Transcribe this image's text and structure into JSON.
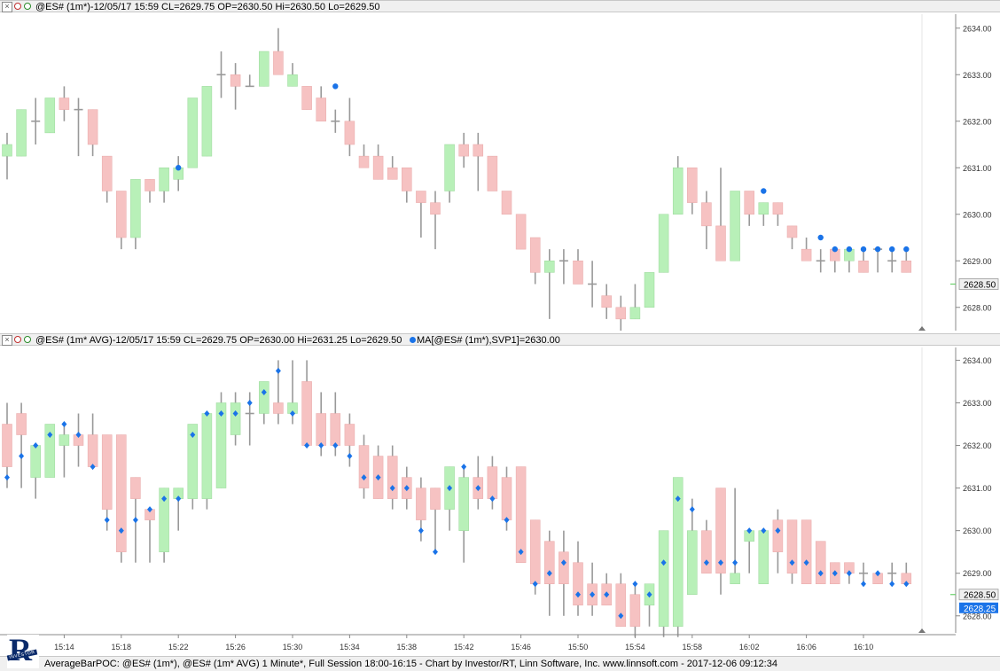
{
  "pane1": {
    "title": "@ES# (1m*)-12/05/17 15:59 CL=2629.75 OP=2630.50 Hi=2630.50 Lo=2629.50",
    "last_price": "2628.50",
    "colors": {
      "up": "#b8f0b8",
      "down": "#f6c2c2",
      "poc": "#1a73e8",
      "wick": "#999999"
    }
  },
  "pane2": {
    "title": "@ES# (1m* AVG)-12/05/17 15:59 CL=2629.75 OP=2630.00 Hi=2631.25 Lo=2629.50",
    "ma_label": "MA[@ES# (1m*),SVP1]=2630.00",
    "last_price": "2628.50",
    "ma_price": "2628.25"
  },
  "footer": {
    "text": "AverageBarPOC: @ES# (1m*), @ES# (1m* AVG) 1 Minute*, Full Session 18:00-16:15 - Chart by Investor/RT, Linn Software, Inc. www.linnsoft.com - 2017-12-06 09:12:34",
    "logo_letter": "R",
    "logo_band": "INVESTOR"
  },
  "chart_data": [
    {
      "type": "candlestick",
      "title": "@ES# (1m*)",
      "y_ticks": [
        "2628.00",
        "2629.00",
        "2630.00",
        "2631.00",
        "2632.00",
        "2633.00",
        "2634.00"
      ],
      "y_values": [
        2628,
        2629,
        2630,
        2631,
        2632,
        2633,
        2634
      ],
      "ylim": [
        2627.5,
        2634.3
      ],
      "x_ticks": [
        "15:14",
        "15:18",
        "15:22",
        "15:26",
        "15:30",
        "15:34",
        "15:38",
        "15:42",
        "15:46",
        "15:50",
        "15:54",
        "15:58",
        "16:02",
        "16:06",
        "16:10"
      ],
      "bars": [
        {
          "o": 2631.25,
          "h": 2631.75,
          "l": 2630.75,
          "c": 2631.5
        },
        {
          "o": 2631.25,
          "h": 2632.25,
          "l": 2631.25,
          "c": 2632.25
        },
        {
          "o": 2632.0,
          "h": 2632.5,
          "l": 2631.5,
          "c": 2632.0
        },
        {
          "o": 2631.75,
          "h": 2632.5,
          "l": 2631.75,
          "c": 2632.5
        },
        {
          "o": 2632.5,
          "h": 2632.75,
          "l": 2632.0,
          "c": 2632.25
        },
        {
          "o": 2632.25,
          "h": 2632.5,
          "l": 2631.25,
          "c": 2632.25
        },
        {
          "o": 2632.25,
          "h": 2632.25,
          "l": 2631.25,
          "c": 2631.5
        },
        {
          "o": 2631.25,
          "h": 2631.25,
          "l": 2630.25,
          "c": 2630.5
        },
        {
          "o": 2630.5,
          "h": 2630.5,
          "l": 2629.25,
          "c": 2629.5
        },
        {
          "o": 2629.5,
          "h": 2630.75,
          "l": 2629.25,
          "c": 2630.75
        },
        {
          "o": 2630.75,
          "h": 2630.75,
          "l": 2630.25,
          "c": 2630.5
        },
        {
          "o": 2630.5,
          "h": 2631.0,
          "l": 2630.25,
          "c": 2631.0
        },
        {
          "o": 2630.75,
          "h": 2631.25,
          "l": 2630.5,
          "c": 2631.0
        },
        {
          "o": 2631.0,
          "h": 2632.5,
          "l": 2631.0,
          "c": 2632.5
        },
        {
          "o": 2631.25,
          "h": 2632.75,
          "l": 2631.25,
          "c": 2632.75
        },
        {
          "o": 2633.0,
          "h": 2633.5,
          "l": 2632.5,
          "c": 2633.0
        },
        {
          "o": 2633.0,
          "h": 2633.25,
          "l": 2632.25,
          "c": 2632.75
        },
        {
          "o": 2632.75,
          "h": 2633.0,
          "l": 2632.75,
          "c": 2632.75
        },
        {
          "o": 2632.75,
          "h": 2633.5,
          "l": 2632.75,
          "c": 2633.5
        },
        {
          "o": 2633.5,
          "h": 2634.0,
          "l": 2633.0,
          "c": 2633.0
        },
        {
          "o": 2632.75,
          "h": 2633.25,
          "l": 2632.75,
          "c": 2633.0
        },
        {
          "o": 2632.75,
          "h": 2632.75,
          "l": 2632.25,
          "c": 2632.25
        },
        {
          "o": 2632.5,
          "h": 2632.75,
          "l": 2632.0,
          "c": 2632.0
        },
        {
          "o": 2632.0,
          "h": 2632.25,
          "l": 2631.75,
          "c": 2632.0
        },
        {
          "o": 2632.0,
          "h": 2632.5,
          "l": 2631.25,
          "c": 2631.5
        },
        {
          "o": 2631.25,
          "h": 2631.5,
          "l": 2631.0,
          "c": 2631.0
        },
        {
          "o": 2631.25,
          "h": 2631.5,
          "l": 2630.75,
          "c": 2630.75
        },
        {
          "o": 2631.0,
          "h": 2631.25,
          "l": 2630.75,
          "c": 2630.75
        },
        {
          "o": 2631.0,
          "h": 2631.0,
          "l": 2630.25,
          "c": 2630.5
        },
        {
          "o": 2630.5,
          "h": 2630.5,
          "l": 2629.5,
          "c": 2630.25
        },
        {
          "o": 2630.25,
          "h": 2630.5,
          "l": 2629.25,
          "c": 2630.0
        },
        {
          "o": 2630.5,
          "h": 2631.5,
          "l": 2630.25,
          "c": 2631.5
        },
        {
          "o": 2631.5,
          "h": 2631.75,
          "l": 2631.0,
          "c": 2631.25
        },
        {
          "o": 2631.5,
          "h": 2631.75,
          "l": 2630.5,
          "c": 2631.25
        },
        {
          "o": 2631.25,
          "h": 2631.25,
          "l": 2630.5,
          "c": 2630.5
        },
        {
          "o": 2630.5,
          "h": 2630.5,
          "l": 2630.0,
          "c": 2630.0
        },
        {
          "o": 2630.0,
          "h": 2630.0,
          "l": 2629.25,
          "c": 2629.25
        },
        {
          "o": 2629.5,
          "h": 2629.5,
          "l": 2628.5,
          "c": 2628.75
        },
        {
          "o": 2628.75,
          "h": 2629.25,
          "l": 2627.75,
          "c": 2629.0
        },
        {
          "o": 2629.0,
          "h": 2629.25,
          "l": 2628.5,
          "c": 2629.0
        },
        {
          "o": 2629.0,
          "h": 2629.25,
          "l": 2628.5,
          "c": 2628.5
        },
        {
          "o": 2628.5,
          "h": 2629.0,
          "l": 2628.0,
          "c": 2628.5
        },
        {
          "o": 2628.25,
          "h": 2628.5,
          "l": 2627.75,
          "c": 2628.0
        },
        {
          "o": 2628.0,
          "h": 2628.25,
          "l": 2627.5,
          "c": 2627.75
        },
        {
          "o": 2627.75,
          "h": 2628.5,
          "l": 2627.75,
          "c": 2628.0
        },
        {
          "o": 2628.0,
          "h": 2628.75,
          "l": 2628.0,
          "c": 2628.75
        },
        {
          "o": 2628.75,
          "h": 2630.0,
          "l": 2628.75,
          "c": 2630.0
        },
        {
          "o": 2630.0,
          "h": 2631.25,
          "l": 2630.0,
          "c": 2631.0
        },
        {
          "o": 2631.0,
          "h": 2631.0,
          "l": 2630.0,
          "c": 2630.25
        },
        {
          "o": 2630.25,
          "h": 2630.5,
          "l": 2629.25,
          "c": 2629.75
        },
        {
          "o": 2629.75,
          "h": 2631.0,
          "l": 2629.0,
          "c": 2629.0
        },
        {
          "o": 2629.0,
          "h": 2630.5,
          "l": 2629.0,
          "c": 2630.5
        },
        {
          "o": 2630.5,
          "h": 2630.5,
          "l": 2629.75,
          "c": 2630.0
        },
        {
          "o": 2630.0,
          "h": 2630.25,
          "l": 2629.75,
          "c": 2630.25
        },
        {
          "o": 2630.25,
          "h": 2630.25,
          "l": 2629.75,
          "c": 2630.0
        },
        {
          "o": 2629.75,
          "h": 2629.75,
          "l": 2629.25,
          "c": 2629.5
        },
        {
          "o": 2629.25,
          "h": 2629.5,
          "l": 2629.0,
          "c": 2629.0
        },
        {
          "o": 2629.0,
          "h": 2629.25,
          "l": 2628.75,
          "c": 2629.0
        },
        {
          "o": 2629.25,
          "h": 2629.25,
          "l": 2628.75,
          "c": 2629.0
        },
        {
          "o": 2629.0,
          "h": 2629.25,
          "l": 2628.75,
          "c": 2629.25
        },
        {
          "o": 2629.0,
          "h": 2629.25,
          "l": 2628.75,
          "c": 2628.75
        },
        {
          "o": 2629.25,
          "h": 2629.25,
          "l": 2628.75,
          "c": 2629.25
        },
        {
          "o": 2629.0,
          "h": 2629.25,
          "l": 2628.75,
          "c": 2629.0
        },
        {
          "o": 2629.0,
          "h": 2629.25,
          "l": 2628.75,
          "c": 2628.75
        },
        {
          "o": 2629.0,
          "h": 2629.25,
          "l": 2628.75,
          "c": 2629.0
        },
        {
          "o": 2629.25,
          "h": 2629.25,
          "l": 2628.0,
          "c": 2628.5
        }
      ],
      "poc_points": [
        {
          "i": 12,
          "v": 2631.0
        },
        {
          "i": 23,
          "v": 2632.75
        },
        {
          "i": 53,
          "v": 2630.5
        },
        {
          "i": 57,
          "v": 2629.5
        },
        {
          "i": 58,
          "v": 2629.25
        },
        {
          "i": 59,
          "v": 2629.25
        },
        {
          "i": 60,
          "v": 2629.25
        },
        {
          "i": 61,
          "v": 2629.25
        },
        {
          "i": 62,
          "v": 2629.25
        },
        {
          "i": 63,
          "v": 2629.25
        }
      ]
    },
    {
      "type": "candlestick",
      "title": "@ES# (1m* AVG)",
      "series_name": "MA[@ES# (1m*),SVP1]",
      "y_ticks": [
        "2628.00",
        "2629.00",
        "2630.00",
        "2631.00",
        "2632.00",
        "2633.00",
        "2634.00"
      ],
      "y_values": [
        2628,
        2629,
        2630,
        2631,
        2632,
        2633,
        2634
      ],
      "ylim": [
        2627.6,
        2634.3
      ],
      "x_ticks": [
        "15:14",
        "15:18",
        "15:22",
        "15:26",
        "15:30",
        "15:34",
        "15:38",
        "15:42",
        "15:46",
        "15:50",
        "15:54",
        "15:58",
        "16:02",
        "16:06",
        "16:10"
      ],
      "bars": [
        {
          "o": 2632.5,
          "h": 2633.0,
          "l": 2631.0,
          "c": 2631.5
        },
        {
          "o": 2632.75,
          "h": 2633.0,
          "l": 2631.0,
          "c": 2632.25
        },
        {
          "o": 2631.25,
          "h": 2632.0,
          "l": 2630.75,
          "c": 2632.0
        },
        {
          "o": 2631.25,
          "h": 2632.5,
          "l": 2631.25,
          "c": 2632.5
        },
        {
          "o": 2632.0,
          "h": 2632.5,
          "l": 2631.25,
          "c": 2632.25
        },
        {
          "o": 2632.25,
          "h": 2632.75,
          "l": 2631.5,
          "c": 2632.0
        },
        {
          "o": 2632.25,
          "h": 2632.75,
          "l": 2631.5,
          "c": 2631.5
        },
        {
          "o": 2632.25,
          "h": 2632.25,
          "l": 2630.0,
          "c": 2630.5
        },
        {
          "o": 2632.25,
          "h": 2632.25,
          "l": 2629.25,
          "c": 2629.5
        },
        {
          "o": 2631.25,
          "h": 2631.25,
          "l": 2629.25,
          "c": 2630.75
        },
        {
          "o": 2630.5,
          "h": 2630.5,
          "l": 2629.25,
          "c": 2630.25
        },
        {
          "o": 2629.5,
          "h": 2631.0,
          "l": 2629.25,
          "c": 2631.0
        },
        {
          "o": 2630.75,
          "h": 2631.0,
          "l": 2630.0,
          "c": 2631.0
        },
        {
          "o": 2630.75,
          "h": 2632.5,
          "l": 2630.5,
          "c": 2632.5
        },
        {
          "o": 2630.75,
          "h": 2632.75,
          "l": 2630.5,
          "c": 2632.75
        },
        {
          "o": 2631.0,
          "h": 2633.25,
          "l": 2631.0,
          "c": 2633.0
        },
        {
          "o": 2632.25,
          "h": 2633.25,
          "l": 2632.0,
          "c": 2633.0
        },
        {
          "o": 2632.75,
          "h": 2633.25,
          "l": 2632.0,
          "c": 2632.75
        },
        {
          "o": 2632.75,
          "h": 2633.5,
          "l": 2632.5,
          "c": 2633.5
        },
        {
          "o": 2633.0,
          "h": 2634.0,
          "l": 2632.5,
          "c": 2632.75
        },
        {
          "o": 2632.75,
          "h": 2634.0,
          "l": 2632.5,
          "c": 2633.0
        },
        {
          "o": 2633.5,
          "h": 2634.0,
          "l": 2632.0,
          "c": 2632.0
        },
        {
          "o": 2632.75,
          "h": 2633.25,
          "l": 2631.75,
          "c": 2632.0
        },
        {
          "o": 2632.75,
          "h": 2633.25,
          "l": 2631.75,
          "c": 2632.0
        },
        {
          "o": 2632.5,
          "h": 2632.75,
          "l": 2631.5,
          "c": 2632.0
        },
        {
          "o": 2632.0,
          "h": 2632.25,
          "l": 2630.75,
          "c": 2631.0
        },
        {
          "o": 2631.75,
          "h": 2632.0,
          "l": 2630.75,
          "c": 2630.75
        },
        {
          "o": 2631.75,
          "h": 2632.0,
          "l": 2630.5,
          "c": 2630.75
        },
        {
          "o": 2631.25,
          "h": 2631.5,
          "l": 2630.5,
          "c": 2630.75
        },
        {
          "o": 2631.0,
          "h": 2631.25,
          "l": 2629.75,
          "c": 2630.25
        },
        {
          "o": 2631.0,
          "h": 2631.0,
          "l": 2629.5,
          "c": 2630.5
        },
        {
          "o": 2630.5,
          "h": 2631.5,
          "l": 2630.0,
          "c": 2631.5
        },
        {
          "o": 2630.0,
          "h": 2631.5,
          "l": 2629.25,
          "c": 2631.25
        },
        {
          "o": 2631.25,
          "h": 2631.75,
          "l": 2630.5,
          "c": 2630.75
        },
        {
          "o": 2631.5,
          "h": 2631.75,
          "l": 2630.5,
          "c": 2630.75
        },
        {
          "o": 2631.25,
          "h": 2631.5,
          "l": 2630.0,
          "c": 2630.25
        },
        {
          "o": 2631.5,
          "h": 2631.5,
          "l": 2629.25,
          "c": 2629.25
        },
        {
          "o": 2630.25,
          "h": 2630.25,
          "l": 2628.5,
          "c": 2628.75
        },
        {
          "o": 2629.75,
          "h": 2630.0,
          "l": 2628.0,
          "c": 2628.75
        },
        {
          "o": 2629.5,
          "h": 2630.0,
          "l": 2628.0,
          "c": 2628.75
        },
        {
          "o": 2629.25,
          "h": 2629.75,
          "l": 2628.0,
          "c": 2628.25
        },
        {
          "o": 2628.75,
          "h": 2629.25,
          "l": 2628.0,
          "c": 2628.25
        },
        {
          "o": 2628.75,
          "h": 2629.0,
          "l": 2628.25,
          "c": 2628.25
        },
        {
          "o": 2628.75,
          "h": 2629.0,
          "l": 2627.75,
          "c": 2627.75
        },
        {
          "o": 2628.5,
          "h": 2628.75,
          "l": 2627.5,
          "c": 2627.75
        },
        {
          "o": 2628.25,
          "h": 2628.75,
          "l": 2627.75,
          "c": 2628.75
        },
        {
          "o": 2627.75,
          "h": 2630.0,
          "l": 2627.5,
          "c": 2630.0
        },
        {
          "o": 2627.75,
          "h": 2631.25,
          "l": 2627.5,
          "c": 2631.25
        },
        {
          "o": 2628.5,
          "h": 2630.75,
          "l": 2628.5,
          "c": 2630.0
        },
        {
          "o": 2630.0,
          "h": 2630.25,
          "l": 2629.0,
          "c": 2629.0
        },
        {
          "o": 2631.0,
          "h": 2631.0,
          "l": 2628.5,
          "c": 2629.0
        },
        {
          "o": 2628.75,
          "h": 2631.0,
          "l": 2628.75,
          "c": 2629.0
        },
        {
          "o": 2629.75,
          "h": 2630.0,
          "l": 2629.0,
          "c": 2630.0
        },
        {
          "o": 2628.75,
          "h": 2630.0,
          "l": 2628.75,
          "c": 2630.0
        },
        {
          "o": 2630.25,
          "h": 2630.5,
          "l": 2629.0,
          "c": 2629.5
        },
        {
          "o": 2630.25,
          "h": 2630.25,
          "l": 2628.75,
          "c": 2629.0
        },
        {
          "o": 2630.25,
          "h": 2630.25,
          "l": 2628.75,
          "c": 2628.75
        },
        {
          "o": 2629.75,
          "h": 2629.75,
          "l": 2628.75,
          "c": 2628.75
        },
        {
          "o": 2629.25,
          "h": 2629.25,
          "l": 2628.75,
          "c": 2628.75
        },
        {
          "o": 2629.25,
          "h": 2629.25,
          "l": 2628.75,
          "c": 2629.0
        },
        {
          "o": 2629.0,
          "h": 2629.25,
          "l": 2628.75,
          "c": 2629.0
        },
        {
          "o": 2629.0,
          "h": 2629.0,
          "l": 2628.75,
          "c": 2628.75
        },
        {
          "o": 2629.0,
          "h": 2629.25,
          "l": 2628.75,
          "c": 2629.0
        },
        {
          "o": 2629.0,
          "h": 2629.25,
          "l": 2628.75,
          "c": 2628.75
        },
        {
          "o": 2629.0,
          "h": 2629.25,
          "l": 2628.75,
          "c": 2628.75
        },
        {
          "o": 2628.75,
          "h": 2629.25,
          "l": 2628.0,
          "c": 2628.5
        }
      ],
      "ma_points": [
        2631.25,
        2631.75,
        2632.0,
        2632.25,
        2632.5,
        2632.25,
        2631.5,
        2630.25,
        2630.0,
        2630.25,
        2630.5,
        2630.75,
        2630.75,
        2632.25,
        2632.75,
        2632.75,
        2632.75,
        2633.0,
        2633.25,
        2633.75,
        2632.75,
        2632.0,
        2632.0,
        2632.0,
        2631.75,
        2631.25,
        2631.25,
        2631.0,
        2631.0,
        2630.0,
        2629.5,
        2631.0,
        2631.5,
        2631.0,
        2630.75,
        2630.25,
        2629.5,
        2628.75,
        2629.0,
        2629.25,
        2628.5,
        2628.5,
        2628.5,
        2628.0,
        2628.75,
        2628.5,
        2629.25,
        2630.75,
        2630.5,
        2629.25,
        2629.25,
        2629.25,
        2630.0,
        2630.0,
        2630.0,
        2629.25,
        2629.25,
        2629.0,
        2629.0,
        2629.0,
        2628.75,
        2629.0,
        2628.75,
        2628.75,
        2628.75,
        2628.25
      ]
    }
  ]
}
